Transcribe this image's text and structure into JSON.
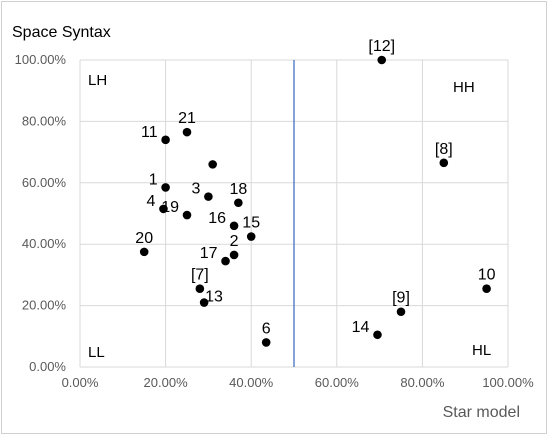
{
  "chart_data": {
    "type": "scatter",
    "title": "",
    "ylabel": "Space Syntax",
    "xlabel": "Star model",
    "xlim": [
      0,
      100
    ],
    "ylim": [
      0,
      100
    ],
    "x_ticks": [
      "0.00%",
      "20.00%",
      "40.00%",
      "60.00%",
      "80.00%",
      "100.00%"
    ],
    "y_ticks": [
      "0.00%",
      "20.00%",
      "40.00%",
      "60.00%",
      "80.00%",
      "100.00%"
    ],
    "grid": "horizontal and vertical gridlines",
    "reference_line_x": 50,
    "quadrant_labels": {
      "top_left": "LH",
      "top_right": "HH",
      "bottom_left": "LL",
      "bottom_right": "HL"
    },
    "points": [
      {
        "label": "[12]",
        "x": 70.5,
        "y": 100.0,
        "pos": "above"
      },
      {
        "label": "21",
        "x": 25.0,
        "y": 76.5,
        "pos": "above"
      },
      {
        "label": "11",
        "x": 20.0,
        "y": 74.0,
        "pos": "left"
      },
      {
        "label": "[8]",
        "x": 85.0,
        "y": 66.5,
        "pos": "above"
      },
      {
        "label": "",
        "x": 31.0,
        "y": 66.0,
        "pos": "none"
      },
      {
        "label": "1",
        "x": 20.0,
        "y": 58.5,
        "pos": "left"
      },
      {
        "label": "3",
        "x": 30.0,
        "y": 55.5,
        "pos": "left"
      },
      {
        "label": "18",
        "x": 37.0,
        "y": 53.5,
        "pos": "above"
      },
      {
        "label": "4",
        "x": 19.5,
        "y": 51.5,
        "pos": "left"
      },
      {
        "label": "19",
        "x": 25.0,
        "y": 49.5,
        "pos": "left"
      },
      {
        "label": "16",
        "x": 36.0,
        "y": 46.0,
        "pos": "left"
      },
      {
        "label": "15",
        "x": 40.0,
        "y": 42.5,
        "pos": "above"
      },
      {
        "label": "20",
        "x": 15.0,
        "y": 37.5,
        "pos": "above"
      },
      {
        "label": "2",
        "x": 36.0,
        "y": 36.5,
        "pos": "above"
      },
      {
        "label": "17",
        "x": 34.0,
        "y": 34.5,
        "pos": "left"
      },
      {
        "label": "10",
        "x": 95.0,
        "y": 25.5,
        "pos": "above"
      },
      {
        "label": "[7]",
        "x": 28.0,
        "y": 25.5,
        "pos": "above"
      },
      {
        "label": "13",
        "x": 29.0,
        "y": 21.0,
        "pos": "right"
      },
      {
        "label": "[9]",
        "x": 75.0,
        "y": 18.0,
        "pos": "above"
      },
      {
        "label": "14",
        "x": 69.5,
        "y": 10.5,
        "pos": "left"
      },
      {
        "label": "6",
        "x": 43.5,
        "y": 8.0,
        "pos": "above"
      }
    ]
  },
  "colors": {
    "point": "#000000",
    "grid": "#d9d9d9",
    "reference_line": "#4472c4",
    "tick_text": "#595959"
  }
}
